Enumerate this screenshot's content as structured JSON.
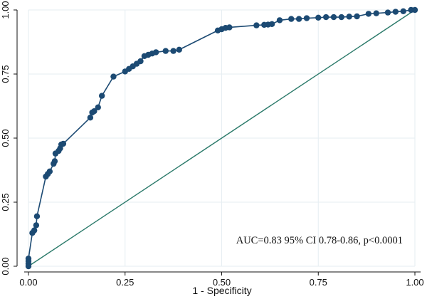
{
  "chart_data": {
    "type": "line",
    "title": "",
    "xlabel": "1 - Specificity",
    "ylabel": "",
    "xlim": [
      0,
      1
    ],
    "ylim": [
      0,
      1
    ],
    "xticks": [
      "0.00",
      "0.25",
      "0.50",
      "0.75",
      "1.00"
    ],
    "yticks": [
      "0.00",
      "0.25",
      "0.50",
      "0.75",
      "1.00"
    ],
    "grid": true,
    "legend": "none",
    "annotation": "AUC=0.83 95% CI 0.78-0.86, p<0.0001",
    "colors": {
      "roc": "#1c4a73",
      "reference": "#2b7a6a",
      "grid": "#e6eef2"
    },
    "series": [
      {
        "values": [
          [
            0.0,
            0.0
          ],
          [
            0.0,
            0.01
          ],
          [
            0.0,
            0.02
          ],
          [
            0.0,
            0.03
          ],
          [
            0.01,
            0.13
          ],
          [
            0.015,
            0.14
          ],
          [
            0.02,
            0.16
          ],
          [
            0.022,
            0.195
          ],
          [
            0.045,
            0.35
          ],
          [
            0.05,
            0.36
          ],
          [
            0.055,
            0.37
          ],
          [
            0.065,
            0.4
          ],
          [
            0.068,
            0.41
          ],
          [
            0.07,
            0.44
          ],
          [
            0.078,
            0.45
          ],
          [
            0.082,
            0.46
          ],
          [
            0.085,
            0.475
          ],
          [
            0.09,
            0.478
          ],
          [
            0.16,
            0.58
          ],
          [
            0.165,
            0.6
          ],
          [
            0.17,
            0.605
          ],
          [
            0.18,
            0.62
          ],
          [
            0.19,
            0.665
          ],
          [
            0.22,
            0.74
          ],
          [
            0.25,
            0.76
          ],
          [
            0.26,
            0.77
          ],
          [
            0.27,
            0.78
          ],
          [
            0.28,
            0.79
          ],
          [
            0.29,
            0.8
          ],
          [
            0.3,
            0.82
          ],
          [
            0.31,
            0.825
          ],
          [
            0.32,
            0.83
          ],
          [
            0.33,
            0.835
          ],
          [
            0.355,
            0.84
          ],
          [
            0.375,
            0.84
          ],
          [
            0.39,
            0.845
          ],
          [
            0.49,
            0.92
          ],
          [
            0.5,
            0.925
          ],
          [
            0.51,
            0.93
          ],
          [
            0.52,
            0.932
          ],
          [
            0.59,
            0.94
          ],
          [
            0.61,
            0.942
          ],
          [
            0.62,
            0.943
          ],
          [
            0.63,
            0.945
          ],
          [
            0.65,
            0.96
          ],
          [
            0.68,
            0.965
          ],
          [
            0.7,
            0.965
          ],
          [
            0.72,
            0.968
          ],
          [
            0.75,
            0.97
          ],
          [
            0.77,
            0.972
          ],
          [
            0.79,
            0.972
          ],
          [
            0.81,
            0.972
          ],
          [
            0.83,
            0.974
          ],
          [
            0.85,
            0.975
          ],
          [
            0.88,
            0.985
          ],
          [
            0.9,
            0.987
          ],
          [
            0.93,
            0.99
          ],
          [
            0.95,
            0.993
          ],
          [
            0.97,
            0.995
          ],
          [
            0.99,
            1.0
          ],
          [
            1.0,
            1.0
          ]
        ]
      }
    ],
    "reference_line": [
      [
        0,
        0
      ],
      [
        1,
        1
      ]
    ]
  }
}
